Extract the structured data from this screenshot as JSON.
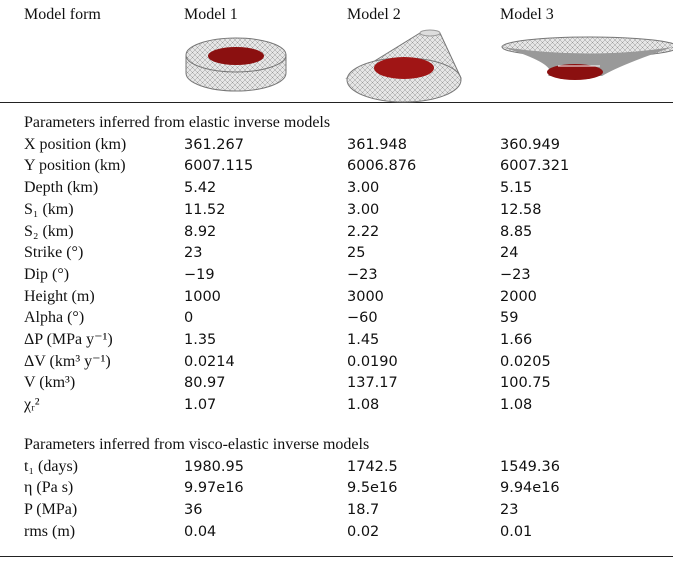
{
  "header": {
    "columns": [
      "Model form",
      "Model 1",
      "Model 2",
      "Model 3"
    ]
  },
  "sections": [
    {
      "title": "Parameters inferred from elastic inverse models",
      "rows": [
        {
          "label": "X position (km)",
          "values": [
            "361.267",
            "361.948",
            "360.949"
          ]
        },
        {
          "label": "Y position (km)",
          "values": [
            "6007.115",
            "6006.876",
            "6007.321"
          ]
        },
        {
          "label": "Depth (km)",
          "values": [
            "5.42",
            "3.00",
            "5.15"
          ]
        },
        {
          "label": "S₁ (km)",
          "values": [
            "11.52",
            "3.00",
            "12.58"
          ]
        },
        {
          "label": "S₂ (km)",
          "values": [
            "8.92",
            "2.22",
            "8.85"
          ]
        },
        {
          "label": "Strike (°)",
          "values": [
            "23",
            "25",
            "24"
          ]
        },
        {
          "label": "Dip (°)",
          "values": [
            "−19",
            "−23",
            "−23"
          ]
        },
        {
          "label": "Height (m)",
          "values": [
            "1000",
            "3000",
            "2000"
          ]
        },
        {
          "label": "Alpha (°)",
          "values": [
            "0",
            "−60",
            "59"
          ]
        },
        {
          "label": "ΔP (MPa y⁻¹)",
          "values": [
            "1.35",
            "1.45",
            "1.66"
          ]
        },
        {
          "label": "ΔV (km³ y⁻¹)",
          "values": [
            "0.0214",
            "0.0190",
            "0.0205"
          ]
        },
        {
          "label": "V (km³)",
          "values": [
            "80.97",
            "137.17",
            "100.75"
          ]
        },
        {
          "label": "χᵣ²",
          "values": [
            "1.07",
            "1.08",
            "1.08"
          ]
        }
      ]
    },
    {
      "title": "Parameters inferred from visco-elastic inverse models",
      "rows": [
        {
          "label": "t₁ (days)",
          "values": [
            "1980.95",
            "1742.5",
            "1549.36"
          ]
        },
        {
          "label": "η (Pa s)",
          "values": [
            "9.97e16",
            "9.5e16",
            "9.94e16"
          ]
        },
        {
          "label": "P (MPa)",
          "values": [
            "36",
            "18.7",
            "23"
          ]
        },
        {
          "label": "rms (m)",
          "values": [
            "0.04",
            "0.02",
            "0.01"
          ]
        }
      ]
    }
  ]
}
